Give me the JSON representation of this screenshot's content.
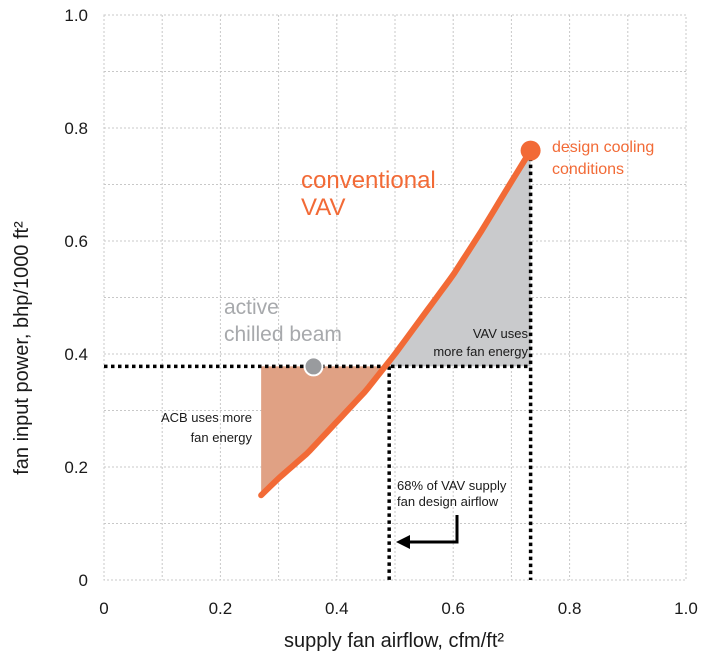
{
  "chart_data": {
    "type": "line",
    "xlabel": "supply fan airflow,  cfm/ft²",
    "ylabel": "fan input power, bhp/1000 ft²",
    "xlim": [
      0,
      1.0
    ],
    "ylim": [
      0,
      1.0
    ],
    "xticks": [
      "0",
      "0.2",
      "0.4",
      "0.6",
      "0.8",
      "1.0"
    ],
    "yticks": [
      "0",
      "0.2",
      "0.4",
      "0.6",
      "0.8",
      "1.0"
    ],
    "grid": true,
    "series": [
      {
        "name": "conventional VAV",
        "color": "#f26a36",
        "points": [
          [
            0.27,
            0.15
          ],
          [
            0.3,
            0.18
          ],
          [
            0.35,
            0.225
          ],
          [
            0.4,
            0.28
          ],
          [
            0.45,
            0.335
          ],
          [
            0.5,
            0.4
          ],
          [
            0.55,
            0.47
          ],
          [
            0.6,
            0.54
          ],
          [
            0.65,
            0.62
          ],
          [
            0.7,
            0.705
          ],
          [
            0.733,
            0.76
          ]
        ]
      }
    ],
    "markers": [
      {
        "name": "active chilled beam",
        "x": 0.36,
        "y": 0.378,
        "color": "#999b9e"
      },
      {
        "name": "design cooling conditions",
        "x": 0.733,
        "y": 0.76,
        "color": "#f26a36"
      }
    ],
    "reference_lines": {
      "acb_power_y": 0.378,
      "crossover_x": 0.49,
      "design_x": 0.733
    },
    "shaded_regions": [
      {
        "name": "ACB uses more fan energy",
        "color": "#e0a184"
      },
      {
        "name": "VAV uses more fan energy",
        "color": "#c9cacc"
      }
    ],
    "annotations": {
      "vav_line1": "conventional",
      "vav_line2": "VAV",
      "acb_line1": "active",
      "acb_line2": "chilled beam",
      "design_line1": "design cooling",
      "design_line2": "conditions",
      "vav_more_line1": "VAV uses",
      "vav_more_line2": "more fan energy",
      "acb_more_line1": "ACB uses more",
      "acb_more_line2": "fan energy",
      "pct_line1": "68% of VAV supply",
      "pct_line2": "fan design airflow"
    },
    "colors": {
      "vav": "#f26a36",
      "acb": "#999b9e",
      "acb_text": "#a7a9ac"
    }
  }
}
